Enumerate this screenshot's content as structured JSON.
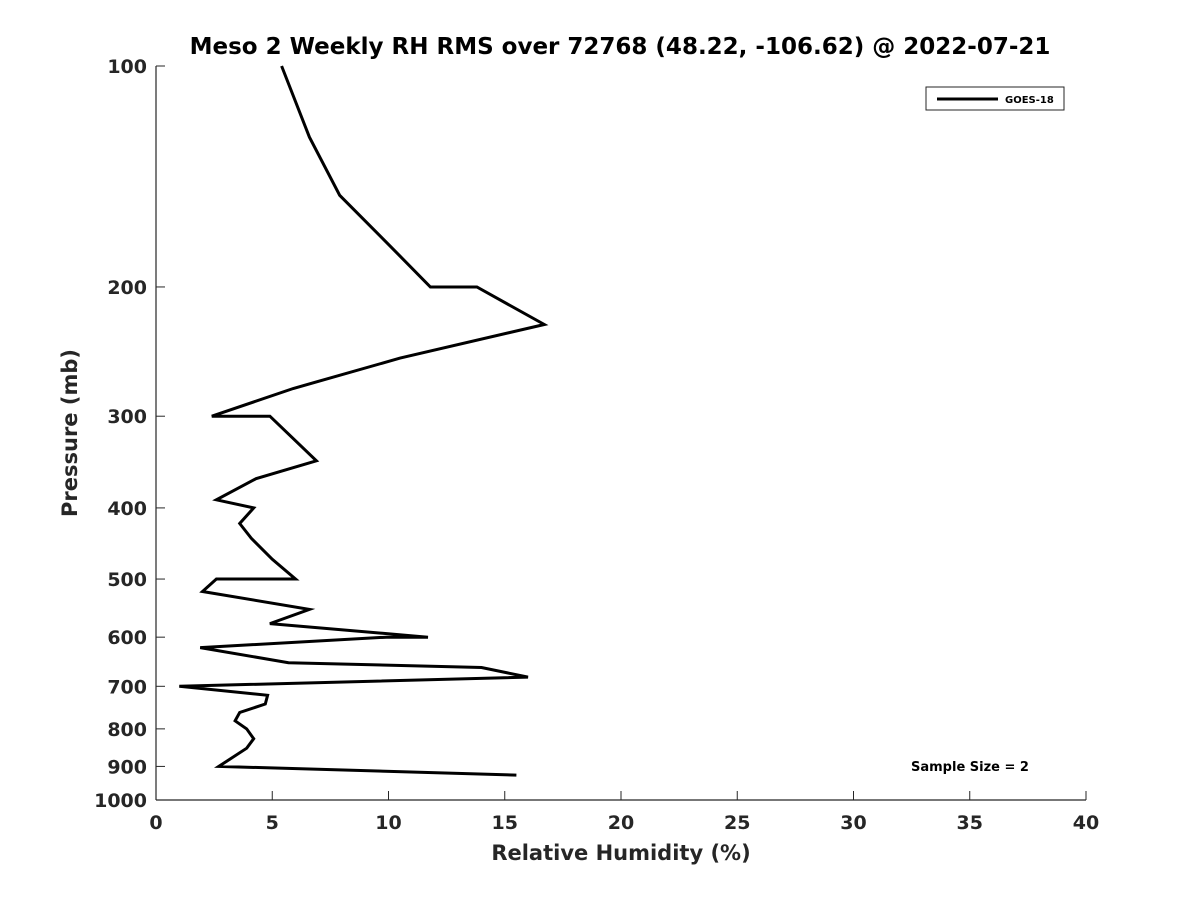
{
  "chart_data": {
    "type": "line",
    "title": "Meso 2 Weekly RH RMS over 72768 (48.22, -106.62) @ 2022-07-21",
    "xlabel": "Relative Humidity (%)",
    "ylabel": "Pressure (mb)",
    "xlim": [
      0,
      40
    ],
    "ylim": [
      100,
      1000
    ],
    "y_scale": "log",
    "y_reversed": true,
    "x_ticks": [
      "0",
      "5",
      "10",
      "15",
      "20",
      "25",
      "30",
      "35",
      "40"
    ],
    "y_ticks": [
      "100",
      "200",
      "300",
      "400",
      "500",
      "600",
      "700",
      "800",
      "900",
      "1000"
    ],
    "grid": false,
    "legend_position": "top-right",
    "annotation": "Sample Size = 2",
    "series": [
      {
        "name": "GOES-18",
        "color": "#000000",
        "points": [
          [
            5.4,
            100
          ],
          [
            6.6,
            125
          ],
          [
            7.9,
            150
          ],
          [
            10.0,
            175
          ],
          [
            11.8,
            200
          ],
          [
            13.8,
            200
          ],
          [
            16.7,
            225
          ],
          [
            10.5,
            250
          ],
          [
            5.9,
            275
          ],
          [
            2.4,
            300
          ],
          [
            4.9,
            300
          ],
          [
            6.9,
            345
          ],
          [
            4.3,
            365
          ],
          [
            2.6,
            390
          ],
          [
            4.2,
            400
          ],
          [
            3.6,
            420
          ],
          [
            4.1,
            440
          ],
          [
            5.0,
            470
          ],
          [
            6.0,
            500
          ],
          [
            2.6,
            500
          ],
          [
            2.0,
            520
          ],
          [
            6.6,
            550
          ],
          [
            4.9,
            575
          ],
          [
            11.7,
            600
          ],
          [
            9.9,
            600
          ],
          [
            1.9,
            620
          ],
          [
            5.7,
            650
          ],
          [
            14.0,
            660
          ],
          [
            16.0,
            680
          ],
          [
            1.0,
            700
          ],
          [
            4.8,
            720
          ],
          [
            4.7,
            740
          ],
          [
            3.6,
            760
          ],
          [
            3.4,
            780
          ],
          [
            3.9,
            800
          ],
          [
            4.2,
            825
          ],
          [
            3.9,
            850
          ],
          [
            2.7,
            900
          ],
          [
            15.5,
            925
          ]
        ]
      }
    ]
  }
}
